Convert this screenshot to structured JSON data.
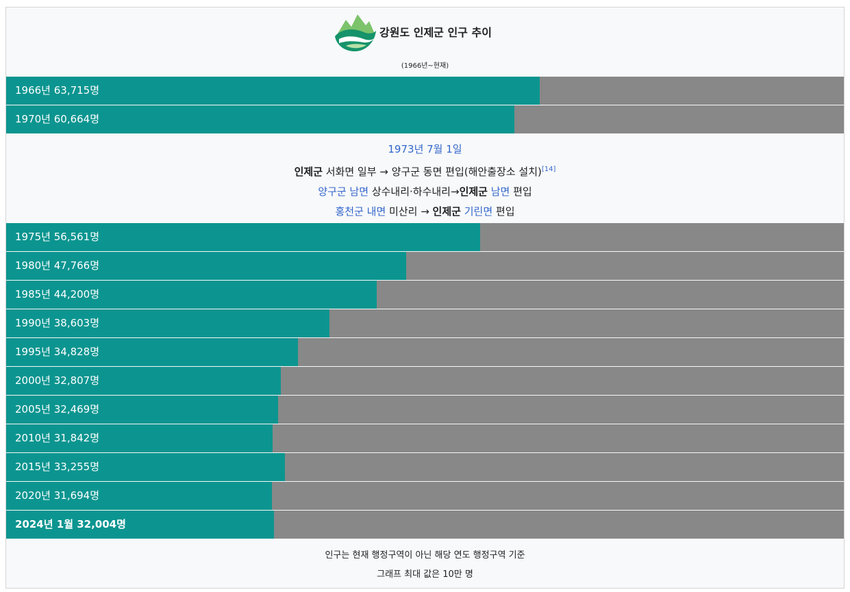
{
  "title": "강원도 인제군 인구 추이",
  "subtitle": "(1966년~현재)",
  "colors": {
    "bar": "#0c9590",
    "track": "#888888",
    "link": "#3366cc"
  },
  "logo": {
    "icon": "mountain-river-logo-icon"
  },
  "chart_data": {
    "type": "bar",
    "orientation": "horizontal",
    "title": "강원도 인제군 인구 추이",
    "subtitle": "(1966년~현재)",
    "xlim": [
      0,
      100000
    ],
    "categories": [
      "1966년",
      "1970년",
      "1975년",
      "1980년",
      "1985년",
      "1990년",
      "1995년",
      "2000년",
      "2005년",
      "2010년",
      "2015년",
      "2020년",
      "2024년 1월"
    ],
    "values": [
      63715,
      60664,
      56561,
      47766,
      44200,
      38603,
      34828,
      32807,
      32469,
      31842,
      33255,
      31694,
      32004
    ],
    "labels": [
      "1966년 63,715명",
      "1970년 60,664명",
      "1975년 56,561명",
      "1980년 47,766명",
      "1985년 44,200명",
      "1990년 38,603명",
      "1995년 34,828명",
      "2000년 32,807명",
      "2005년 32,469명",
      "2010년 31,842명",
      "2015년 33,255명",
      "2020년 31,694명",
      "2024년 1월 32,004명"
    ],
    "annotation": {
      "date": "1973년 7월 1일",
      "line1": {
        "a": "인제군",
        "b": " 서화면 일부 → 양구군 동면 편입(해안출장소 설치)",
        "ref": "[14]"
      },
      "line2": {
        "a": "양구군 남면",
        "b": " 상수내리·하수내리→",
        "c": "인제군",
        "d": " ",
        "e": "남면",
        "f": " 편입"
      },
      "line3": {
        "a": "홍천군 내면",
        "b": " 미산리 → ",
        "c": "인제군",
        "d": " ",
        "e": "기린면",
        "f": " 편입"
      }
    }
  },
  "footer": {
    "line1": "인구는 현재 행정구역이 아닌 해당 연도 행정구역 기준",
    "line2": "그래프 최대 값은 10만 명"
  }
}
